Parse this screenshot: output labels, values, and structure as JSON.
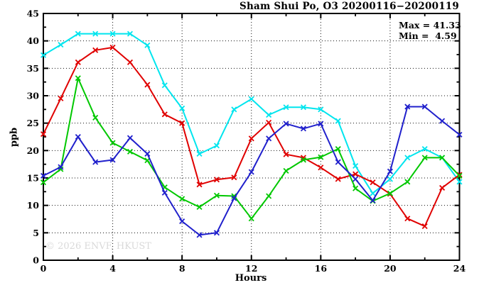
{
  "title": "Sham Shui Po, O3 20200116−20200119",
  "annotation": {
    "max_line": "Max = 41.33",
    "min_line": "Min =  4.59"
  },
  "watermark": "© 2026 ENVF, HKUST",
  "chart_data": {
    "type": "line",
    "title": "Sham Shui Po, O3 20200116−20200119",
    "xlabel": "Hours",
    "ylabel": "ppb",
    "xlim": [
      0,
      24
    ],
    "ylim": [
      0,
      45
    ],
    "xticks": [
      0,
      4,
      8,
      12,
      16,
      20,
      24
    ],
    "xminorticks": [
      2,
      6,
      10,
      14,
      18,
      22
    ],
    "yticks": [
      0,
      5,
      10,
      15,
      20,
      25,
      30,
      35,
      40,
      45
    ],
    "yminorticks": [
      2.5,
      7.5,
      12.5,
      17.5,
      22.5,
      27.5,
      32.5,
      37.5,
      42.5
    ],
    "grid": true,
    "legend": "none",
    "max": 41.33,
    "min": 4.59,
    "x": [
      0,
      1,
      2,
      3,
      4,
      5,
      6,
      7,
      8,
      9,
      10,
      11,
      12,
      13,
      14,
      15,
      16,
      17,
      18,
      19,
      20,
      21,
      22,
      23,
      24
    ],
    "series": [
      {
        "name": "series-cyan",
        "color": "#00e5ee",
        "values": [
          37.4,
          39.3,
          41.3,
          41.3,
          41.3,
          41.3,
          39.2,
          31.9,
          27.7,
          19.4,
          20.9,
          27.5,
          29.4,
          26.5,
          27.9,
          27.9,
          27.5,
          25.4,
          17.2,
          12.2,
          14.8,
          18.7,
          20.3,
          18.7,
          14.3
        ]
      },
      {
        "name": "series-red",
        "color": "#e00000",
        "values": [
          23.0,
          29.5,
          36.1,
          38.3,
          38.8,
          36.1,
          32.0,
          26.6,
          25.0,
          13.8,
          14.7,
          15.1,
          22.2,
          25.1,
          19.3,
          18.7,
          16.9,
          14.8,
          15.7,
          14.2,
          12.1,
          7.6,
          6.2,
          13.2,
          15.6
        ]
      },
      {
        "name": "series-green",
        "color": "#00c800",
        "values": [
          14.2,
          16.6,
          33.2,
          26.0,
          21.4,
          19.8,
          18.2,
          13.3,
          11.2,
          9.7,
          11.8,
          11.7,
          7.6,
          11.7,
          16.3,
          18.3,
          18.8,
          20.3,
          13.1,
          10.8,
          12.2,
          14.3,
          18.7,
          18.7,
          15.4
        ]
      },
      {
        "name": "series-blue",
        "color": "#2020cc",
        "values": [
          15.4,
          17.0,
          22.5,
          17.9,
          18.3,
          22.3,
          19.4,
          12.3,
          7.1,
          4.6,
          5.0,
          11.3,
          16.1,
          22.2,
          24.9,
          24.0,
          24.9,
          17.9,
          14.8,
          10.9,
          16.2,
          28.0,
          28.0,
          25.4,
          22.9
        ]
      }
    ]
  }
}
